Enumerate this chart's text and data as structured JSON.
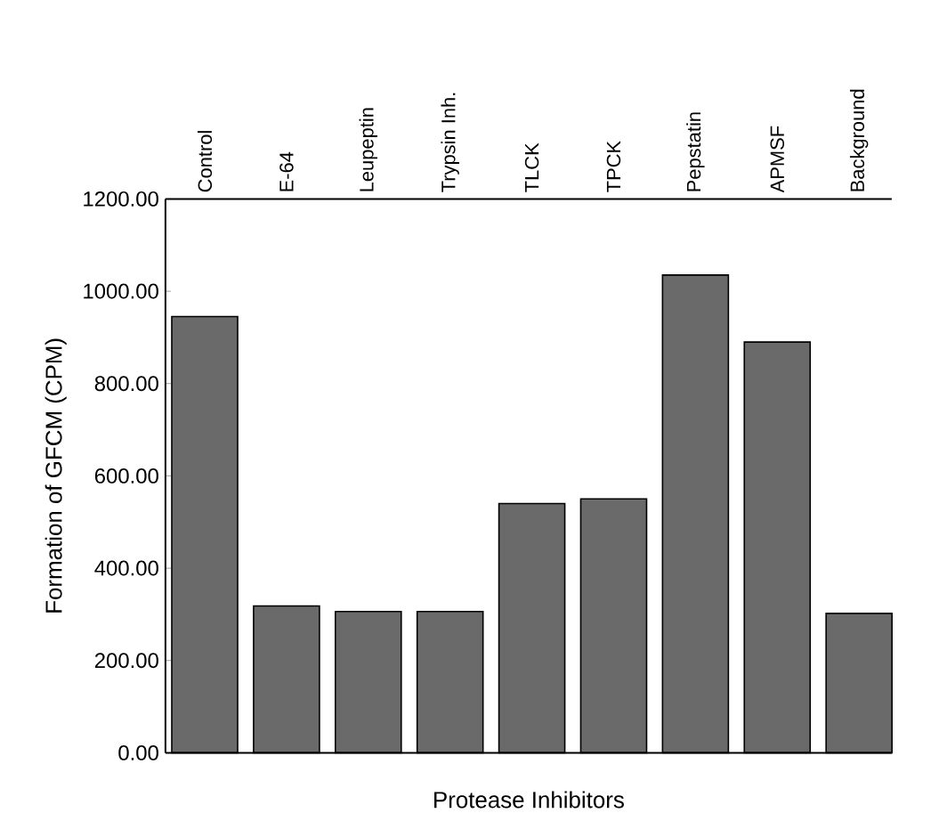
{
  "chart_data": {
    "type": "bar",
    "xlabel": "Protease Inhibitors",
    "ylabel": "Formation of GFCM (CPM)",
    "categories": [
      "Control",
      "E-64",
      "Leupeptin",
      "Trypsin Inh.",
      "TLCK",
      "TPCK",
      "Pepstatin",
      "APMSF",
      "Background"
    ],
    "values": [
      945,
      318,
      306,
      306,
      540,
      550,
      1035,
      890,
      302
    ],
    "color": "#6a6a6a",
    "ylim": [
      0,
      1200
    ],
    "yticks": [
      {
        "value": 0,
        "label": "0.00"
      },
      {
        "value": 200,
        "label": "200.00"
      },
      {
        "value": 400,
        "label": "400.00"
      },
      {
        "value": 600,
        "label": "600.00"
      },
      {
        "value": 800,
        "label": "800.00"
      },
      {
        "value": 1000,
        "label": "1000.00"
      },
      {
        "value": 1200,
        "label": "1200.00"
      }
    ],
    "grid": false
  }
}
